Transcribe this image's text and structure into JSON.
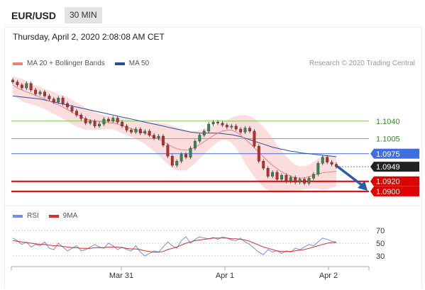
{
  "header": {
    "symbol": "EUR/USD",
    "timeframe": "30 MIN"
  },
  "timestamp": "Thursday, April 2, 2020 2:08:08 AM CET",
  "legend": {
    "ma20": "MA 20 + Bollinger Bands",
    "ma50": "MA 50",
    "credit": "Research © 2020 Trading Central"
  },
  "rsi_legend": {
    "rsi": "RSI",
    "ma9": "9MA"
  },
  "colors": {
    "resistance": "#3d6fe0",
    "support": "#e00000",
    "target_line": "#7cbf5a",
    "ma20": "#f08080",
    "ma50": "#2b4e9a",
    "band_fill": "#fbd9d9",
    "candle_up": "#2e8b57",
    "candle_down": "#c62828",
    "last_price": "#222222",
    "arrow": "#2a5aa8",
    "rsi": "#6f8fe0",
    "rsi_ma": "#d32f2f"
  },
  "chart_data": [
    {
      "type": "line",
      "title": "EUR/USD 30 MIN",
      "x_ticks": [
        "Mar 31",
        "Apr 1",
        "Apr 2"
      ],
      "ylim": [
        1.088,
        1.114
      ],
      "close": [
        1.1118,
        1.1112,
        1.1106,
        1.1115,
        1.1102,
        1.1094,
        1.1098,
        1.109,
        1.1084,
        1.1078,
        1.1086,
        1.1075,
        1.1068,
        1.106,
        1.1052,
        1.1045,
        1.1036,
        1.104,
        1.103,
        1.1034,
        1.1044,
        1.104,
        1.1046,
        1.1038,
        1.103,
        1.1022,
        1.1018,
        1.1024,
        1.1016,
        1.102,
        1.1012,
        1.1006,
        1.101,
        1.0992,
        1.097,
        1.0952,
        1.096,
        1.0974,
        1.0968,
        1.0986,
        1.1,
        1.1012,
        1.102,
        1.1034,
        1.1038,
        1.1036,
        1.1032,
        1.1028,
        1.103,
        1.1024,
        1.1018,
        1.1026,
        1.102,
        1.099,
        1.096,
        1.0946,
        1.093,
        1.0938,
        1.0924,
        1.0932,
        1.092,
        1.0928,
        1.0918,
        1.0924,
        1.0916,
        1.0926,
        1.0934,
        1.0956,
        1.0968,
        1.0958,
        1.0954,
        1.0949
      ],
      "ma20": [
        1.1112,
        1.1106,
        1.1102,
        1.1098,
        1.1095,
        1.1091,
        1.1088,
        1.1084,
        1.108,
        1.1076,
        1.1072,
        1.1068,
        1.1063,
        1.1058,
        1.1053,
        1.1049,
        1.1044,
        1.1042,
        1.104,
        1.1039,
        1.1038,
        1.1037,
        1.1036,
        1.1034,
        1.1031,
        1.1028,
        1.1025,
        1.1022,
        1.1019,
        1.1016,
        1.1012,
        1.1008,
        1.1004,
        1.0999,
        1.0994,
        1.0989,
        1.0985,
        1.0983,
        1.0982,
        1.0984,
        1.0988,
        1.0993,
        1.0999,
        1.1005,
        1.1011,
        1.1016,
        1.102,
        1.1022,
        1.1022,
        1.1018,
        1.1012,
        1.1004,
        1.0996,
        1.0987,
        1.0978,
        1.0969,
        1.096,
        1.0952,
        1.0945,
        1.0939,
        1.0934,
        1.093,
        1.0927,
        1.0926,
        1.0927,
        1.0929,
        1.0932,
        1.0935,
        1.0937,
        1.0938,
        1.0939,
        1.094
      ],
      "band_width": [
        0.0018,
        0.002,
        0.0022,
        0.0022,
        0.0021,
        0.002,
        0.002,
        0.002,
        0.0021,
        0.0022,
        0.0022,
        0.0023,
        0.0024,
        0.0024,
        0.0024,
        0.0023,
        0.0022,
        0.002,
        0.0018,
        0.0016,
        0.0014,
        0.0013,
        0.0013,
        0.0014,
        0.0015,
        0.0016,
        0.0017,
        0.0018,
        0.002,
        0.0022,
        0.0025,
        0.0028,
        0.0032,
        0.0036,
        0.004,
        0.0042,
        0.0043,
        0.0042,
        0.004,
        0.0036,
        0.0032,
        0.0028,
        0.0025,
        0.0022,
        0.002,
        0.0018,
        0.0017,
        0.002,
        0.0025,
        0.0032,
        0.004,
        0.0048,
        0.0054,
        0.0058,
        0.006,
        0.006,
        0.0058,
        0.0054,
        0.0048,
        0.0042,
        0.0036,
        0.003,
        0.0026,
        0.0024,
        0.0023,
        0.0024,
        0.0026,
        0.003,
        0.0034,
        0.0034,
        0.0032,
        0.003
      ],
      "ma50": [
        1.109,
        1.1089,
        1.1088,
        1.1087,
        1.1086,
        1.1085,
        1.1084,
        1.1082,
        1.108,
        1.1078,
        1.1076,
        1.1074,
        1.1072,
        1.107,
        1.1068,
        1.1066,
        1.1064,
        1.1062,
        1.106,
        1.1058,
        1.1056,
        1.1054,
        1.1052,
        1.105,
        1.1048,
        1.1046,
        1.1044,
        1.1042,
        1.104,
        1.1038,
        1.1036,
        1.1034,
        1.1032,
        1.103,
        1.1028,
        1.1026,
        1.1024,
        1.1022,
        1.102,
        1.1018,
        1.1017,
        1.1016,
        1.1016,
        1.1016,
        1.1016,
        1.1016,
        1.1015,
        1.1014,
        1.1013,
        1.1011,
        1.1009,
        1.1006,
        1.1003,
        1.1,
        1.0997,
        1.0994,
        1.0991,
        1.0988,
        1.0986,
        1.0984,
        1.0982,
        1.098,
        1.0979,
        1.0977,
        1.0976,
        1.0975,
        1.0974,
        1.0973,
        1.0972,
        1.0971,
        1.097,
        1.0969
      ],
      "levels": [
        {
          "value": 1.104,
          "label": "1.1040",
          "role": "target"
        },
        {
          "value": 1.1005,
          "label": "1.1005",
          "role": "target"
        },
        {
          "value": 1.0975,
          "label": "1.0975",
          "role": "resistance"
        },
        {
          "value": 1.0949,
          "label": "1.0949",
          "role": "last"
        },
        {
          "value": 1.092,
          "label": "1.0920",
          "role": "support"
        },
        {
          "value": 1.09,
          "label": "1.0900",
          "role": "support"
        }
      ],
      "forecast_arrow": {
        "from": 1.0949,
        "to": 1.0904
      }
    },
    {
      "type": "line",
      "title": "RSI",
      "ylim": [
        20,
        80
      ],
      "y_ticks": [
        70,
        50,
        30
      ],
      "rsi": [
        58,
        54,
        48,
        52,
        44,
        48,
        46,
        52,
        42,
        40,
        50,
        44,
        38,
        42,
        46,
        38,
        40,
        44,
        48,
        44,
        42,
        50,
        46,
        40,
        44,
        40,
        38,
        46,
        36,
        30,
        34,
        38,
        36,
        44,
        52,
        46,
        42,
        54,
        60,
        50,
        56,
        60,
        58,
        57,
        59,
        56,
        60,
        58,
        55,
        54,
        58,
        52,
        48,
        42,
        36,
        32,
        40,
        36,
        38,
        34,
        38,
        36,
        42,
        40,
        44,
        48,
        46,
        52,
        58,
        56,
        53,
        52
      ],
      "rsi_ma": [
        54,
        53,
        52,
        51,
        50,
        49,
        48,
        48,
        47,
        46,
        46,
        45,
        44,
        43,
        43,
        42,
        42,
        42,
        43,
        43,
        43,
        44,
        44,
        44,
        43,
        42,
        41,
        41,
        40,
        38,
        37,
        36,
        36,
        37,
        40,
        42,
        44,
        47,
        50,
        52,
        54,
        55,
        56,
        57,
        58,
        58,
        58,
        58,
        57,
        57,
        56,
        55,
        53,
        50,
        47,
        44,
        42,
        40,
        38,
        37,
        37,
        37,
        38,
        39,
        40,
        42,
        44,
        46,
        48,
        50,
        51,
        51
      ]
    }
  ]
}
